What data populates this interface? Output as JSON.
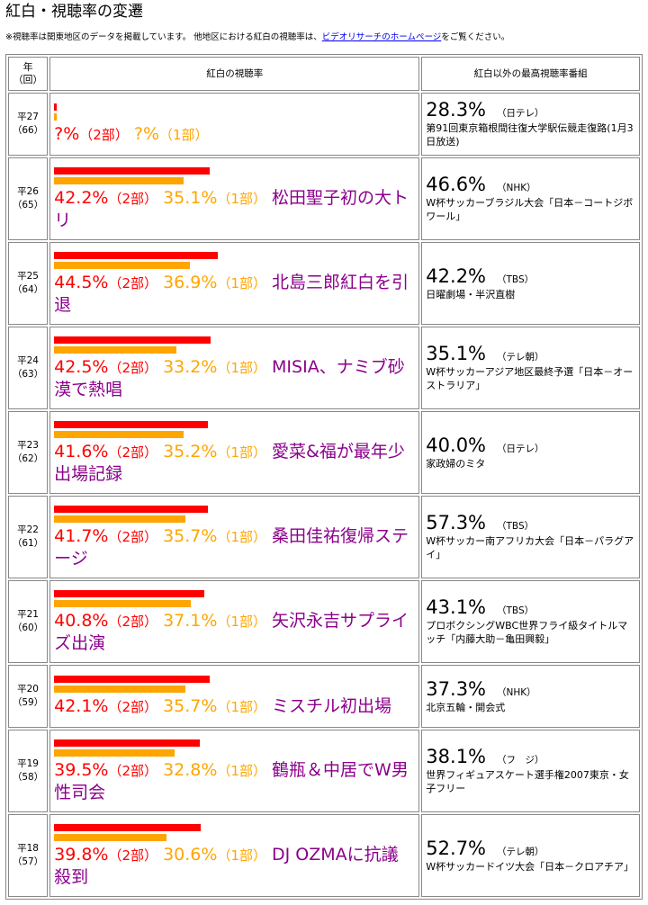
{
  "page": {
    "title": "紅白・視聴率の変遷",
    "note_prefix": "※視聴率は関東地区のデータを掲載しています。 他地区における紅白の視聴率は、",
    "note_link": "ビデオリサーチのホームページ",
    "note_suffix": "をご覧ください。"
  },
  "table": {
    "headers": {
      "year_line1": "年",
      "year_line2": "（回）",
      "kohaku": "紅白の視聴率",
      "other": "紅白以外の最高視聴率番組"
    },
    "colors": {
      "part2_bar": "#ff0000",
      "part1_bar": "#ffa500",
      "event_text": "#8b008b"
    },
    "part2_suffix": "（2部）",
    "part1_suffix": "（1部）",
    "rows": [
      {
        "year": "平27",
        "edition": "（66）",
        "part2_text": "?%",
        "part1_text": "?%",
        "part2_value": null,
        "part1_value": null,
        "event": "",
        "other_rating": "28.3%",
        "other_channel": "（日テレ）",
        "other_show": "第91回東京箱根間往復大学駅伝競走復路(1月3日放送)"
      },
      {
        "year": "平26",
        "edition": "（65）",
        "part2_text": "42.2%",
        "part1_text": "35.1%",
        "part2_value": 42.2,
        "part1_value": 35.1,
        "event": "松田聖子初の大トリ",
        "other_rating": "46.6%",
        "other_channel": "（NHK）",
        "other_show": "W杯サッカーブラジル大会「日本－コートジボワール」"
      },
      {
        "year": "平25",
        "edition": "（64）",
        "part2_text": "44.5%",
        "part1_text": "36.9%",
        "part2_value": 44.5,
        "part1_value": 36.9,
        "event": "北島三郎紅白を引退",
        "other_rating": "42.2%",
        "other_channel": "（TBS）",
        "other_show": "日曜劇場・半沢直樹"
      },
      {
        "year": "平24",
        "edition": "（63）",
        "part2_text": "42.5%",
        "part1_text": "33.2%",
        "part2_value": 42.5,
        "part1_value": 33.2,
        "event": "MISIA、ナミブ砂漠で熱唱",
        "other_rating": "35.1%",
        "other_channel": "（テレ朝）",
        "other_show": "W杯サッカーアジア地区最終予選「日本－オーストラリア」"
      },
      {
        "year": "平23",
        "edition": "（62）",
        "part2_text": "41.6%",
        "part1_text": "35.2%",
        "part2_value": 41.6,
        "part1_value": 35.2,
        "event": "愛菜&福が最年少出場記録",
        "other_rating": "40.0%",
        "other_channel": "（日テレ）",
        "other_show": "家政婦のミタ"
      },
      {
        "year": "平22",
        "edition": "（61）",
        "part2_text": "41.7%",
        "part1_text": "35.7%",
        "part2_value": 41.7,
        "part1_value": 35.7,
        "event": "桑田佳祐復帰ステージ",
        "other_rating": "57.3%",
        "other_channel": "（TBS）",
        "other_show": "W杯サッカー南アフリカ大会「日本－パラグアイ」"
      },
      {
        "year": "平21",
        "edition": "（60）",
        "part2_text": "40.8%",
        "part1_text": "37.1%",
        "part2_value": 40.8,
        "part1_value": 37.1,
        "event": "矢沢永吉サプライズ出演",
        "other_rating": "43.1%",
        "other_channel": "（TBS）",
        "other_show": "プロボクシングWBC世界フライ級タイトルマッチ「内藤大助－亀田興毅」"
      },
      {
        "year": "平20",
        "edition": "（59）",
        "part2_text": "42.1%",
        "part1_text": "35.7%",
        "part2_value": 42.1,
        "part1_value": 35.7,
        "event": "ミスチル初出場",
        "other_rating": "37.3%",
        "other_channel": "（NHK）",
        "other_show": "北京五輪・開会式"
      },
      {
        "year": "平19",
        "edition": "（58）",
        "part2_text": "39.5%",
        "part1_text": "32.8%",
        "part2_value": 39.5,
        "part1_value": 32.8,
        "event": "鶴瓶＆中居でW男性司会",
        "other_rating": "38.1%",
        "other_channel": "（フ　ジ）",
        "other_show": "世界フィギュアスケート選手権2007東京・女子フリー"
      },
      {
        "year": "平18",
        "edition": "（57）",
        "part2_text": "39.8%",
        "part1_text": "30.6%",
        "part2_value": 39.8,
        "part1_value": 30.6,
        "event": "DJ OZMAに抗議殺到",
        "other_rating": "52.7%",
        "other_channel": "（テレ朝）",
        "other_show": "W杯サッカードイツ大会「日本－クロアチア」"
      }
    ]
  }
}
